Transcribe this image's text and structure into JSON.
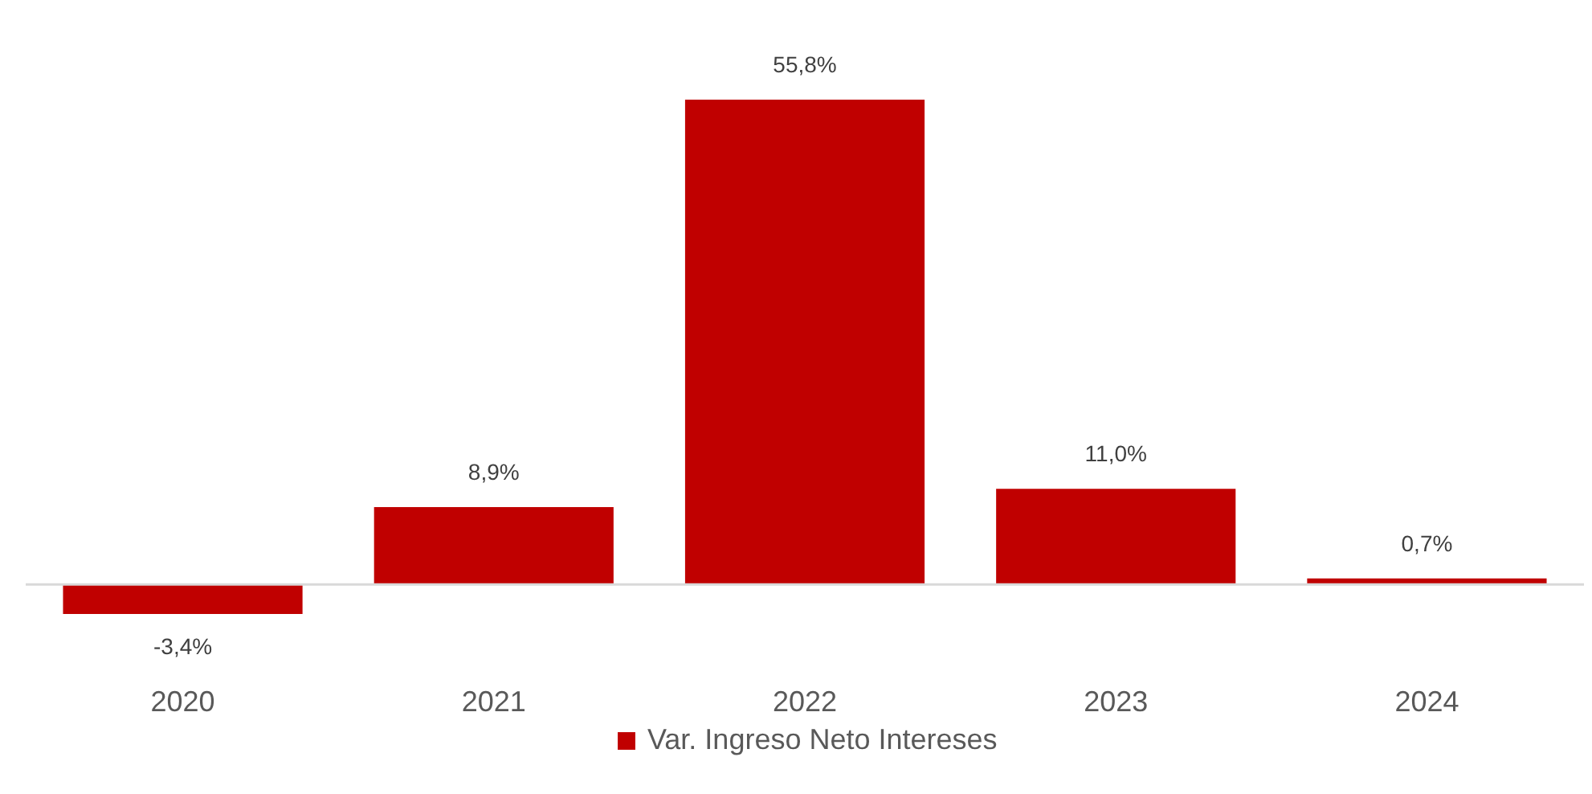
{
  "chart_data": {
    "type": "bar",
    "categories": [
      "2020",
      "2021",
      "2022",
      "2023",
      "2024"
    ],
    "legend": "bottom",
    "series": [
      {
        "name": "Var. Ingreso Neto Intereses",
        "color": "#c00000",
        "values": [
          -3.4,
          8.9,
          55.8,
          11.0,
          0.7
        ],
        "value_labels": [
          "-3,4%",
          "8,9%",
          "55,8%",
          "11,0%",
          "0,7%"
        ]
      }
    ]
  }
}
